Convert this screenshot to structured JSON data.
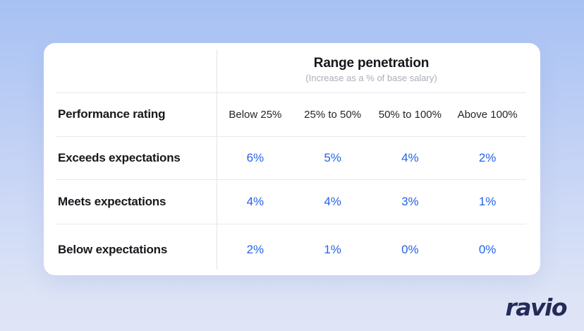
{
  "chart_data": {
    "type": "table",
    "title": "Range penetration",
    "subtitle": "(Increase as a % of base salary)",
    "row_axis_label": "Performance rating",
    "columns": [
      "Below 25%",
      "25% to 50%",
      "50% to 100%",
      "Above 100%"
    ],
    "rows": [
      {
        "label": "Exceeds expectations",
        "values": [
          "6%",
          "5%",
          "4%",
          "2%"
        ]
      },
      {
        "label": "Meets expectations",
        "values": [
          "4%",
          "4%",
          "3%",
          "1%"
        ]
      },
      {
        "label": "Below expectations",
        "values": [
          "2%",
          "1%",
          "0%",
          "0%"
        ]
      }
    ]
  },
  "logo": {
    "text": "ravio"
  },
  "colors": {
    "value_blue": "#2563eb",
    "logo_navy": "#242b58",
    "background_top": "#a7c1f4",
    "background_bottom": "#dfe5f6",
    "card_background": "#ffffff",
    "divider_gray": "#e7e9ee",
    "subtitle_gray": "#a9aeb8"
  }
}
